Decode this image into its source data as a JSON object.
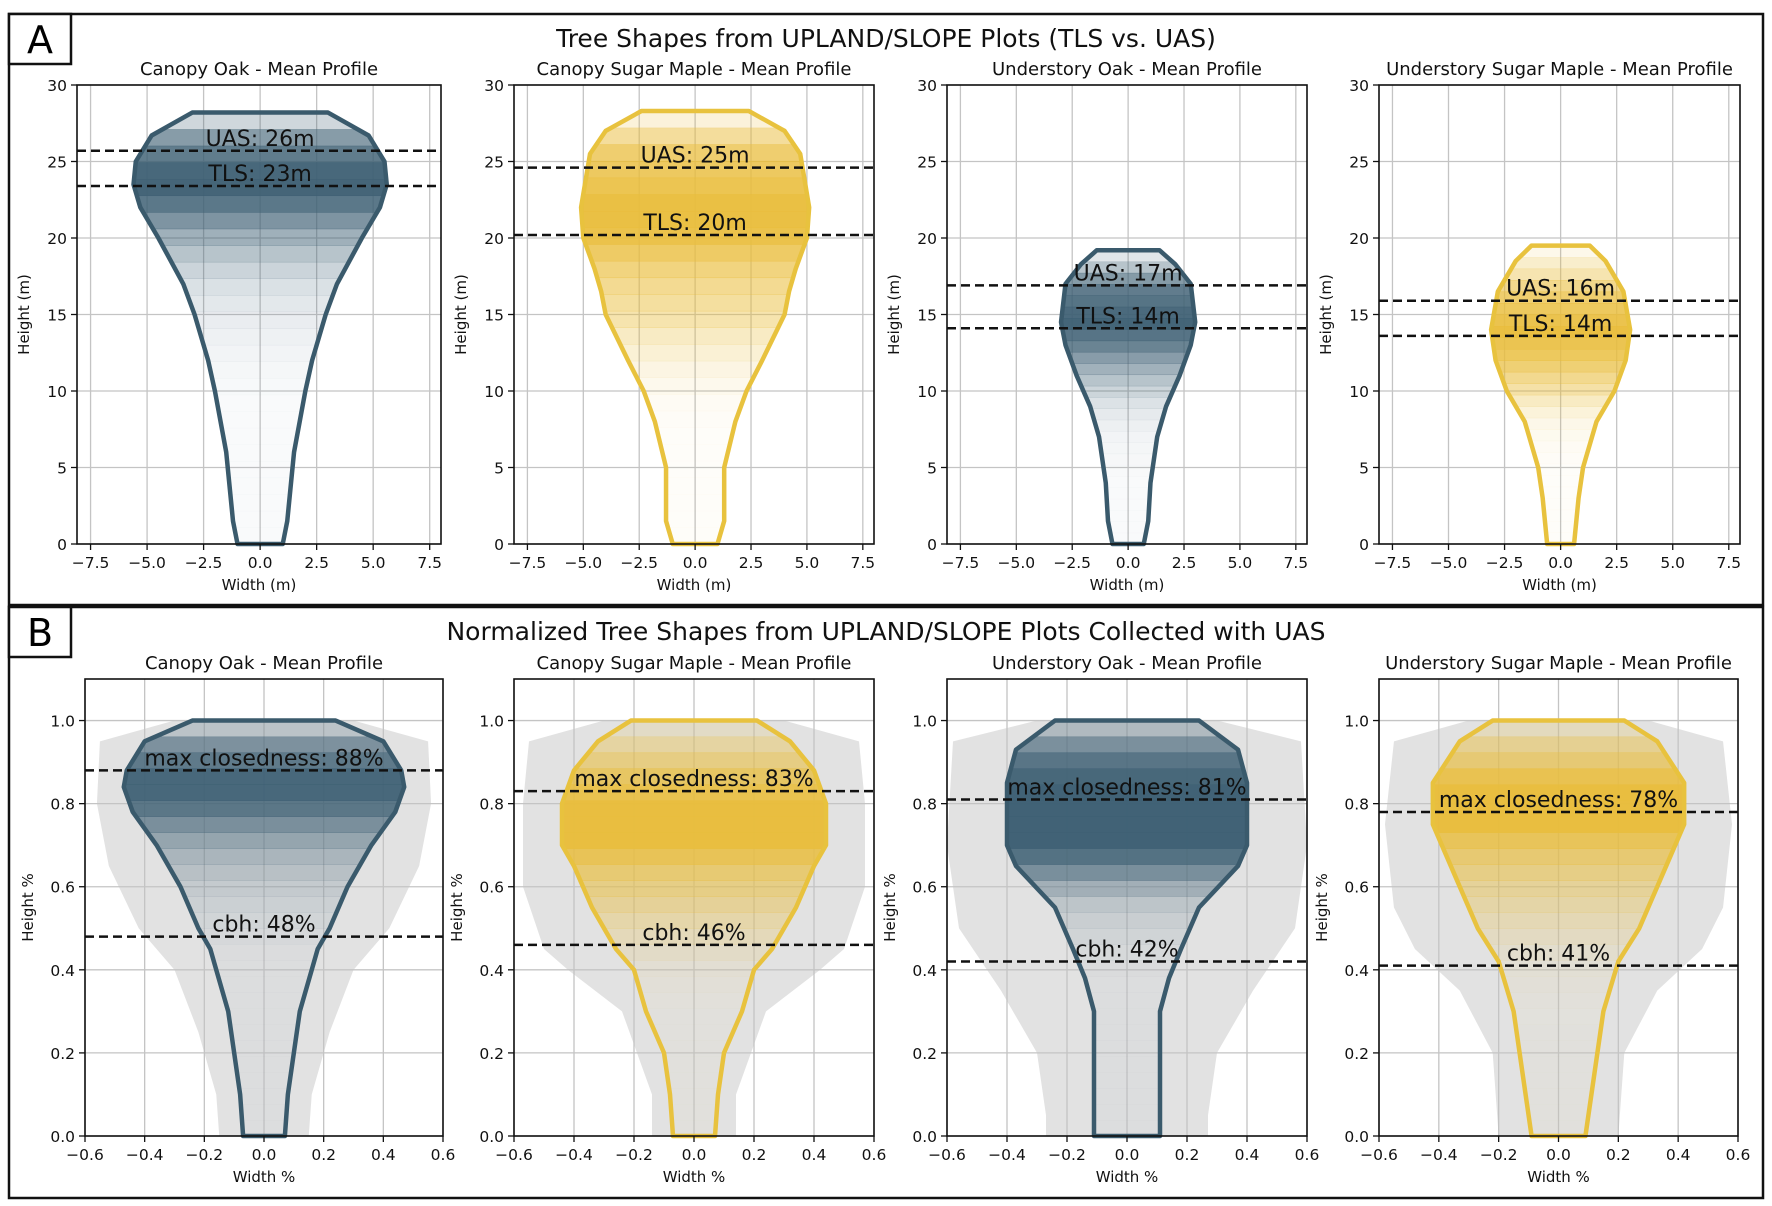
{
  "chart_data": {
    "type": "area",
    "colors": {
      "oak": "#3d5f73",
      "maple": "#e9bd3c",
      "envelope": "#e2e2e2",
      "grid": "#c4c4c4"
    },
    "groups": [
      {
        "letter": "A",
        "title": "Tree Shapes from UPLAND/SLOPE Plots (TLS vs. UAS)",
        "xlabel": "Width (m)",
        "ylabel": "Height (m)",
        "xlim": [
          -8.1,
          8.0
        ],
        "ylim": [
          0,
          30
        ],
        "xticks": [
          -7.5,
          -5.0,
          -2.5,
          0.0,
          2.5,
          5.0,
          7.5
        ],
        "xtick_labels": [
          "−7.5",
          "−5.0",
          "−2.5",
          "0.0",
          "2.5",
          "5.0",
          "7.5"
        ],
        "yticks": [
          0,
          5,
          10,
          15,
          20,
          25,
          30
        ],
        "ytick_labels": [
          "0",
          "5",
          "10",
          "15",
          "20",
          "25",
          "30"
        ],
        "panels": [
          {
            "title": "Canopy Oak - Mean Profile",
            "species": "oak",
            "profile_halfwidth": [
              [
                0,
                1.0
              ],
              [
                1.5,
                1.2
              ],
              [
                6,
                1.5
              ],
              [
                10,
                2.0
              ],
              [
                12,
                2.3
              ],
              [
                15,
                2.9
              ],
              [
                17,
                3.4
              ],
              [
                20,
                4.5
              ],
              [
                22,
                5.3
              ],
              [
                23.5,
                5.6
              ],
              [
                25,
                5.5
              ],
              [
                26.7,
                4.8
              ],
              [
                28.2,
                3.0
              ]
            ],
            "lines": [
              {
                "value": 25.7,
                "label": "UAS: 26m"
              },
              {
                "value": 23.4,
                "label": "TLS: 23m"
              }
            ]
          },
          {
            "title": "Canopy Sugar Maple - Mean Profile",
            "species": "maple",
            "profile_halfwidth": [
              [
                0,
                1.0
              ],
              [
                1.5,
                1.3
              ],
              [
                5,
                1.3
              ],
              [
                8,
                1.8
              ],
              [
                10,
                2.3
              ],
              [
                12,
                3.0
              ],
              [
                15,
                4.0
              ],
              [
                16.5,
                4.2
              ],
              [
                18,
                4.5
              ],
              [
                20,
                5.0
              ],
              [
                22,
                5.1
              ],
              [
                25.5,
                4.7
              ],
              [
                27,
                4.0
              ],
              [
                28.3,
                2.4
              ]
            ],
            "lines": [
              {
                "value": 24.6,
                "label": "UAS: 25m"
              },
              {
                "value": 20.2,
                "label": "TLS: 20m"
              }
            ]
          },
          {
            "title": "Understory Oak - Mean Profile",
            "species": "oak",
            "profile_halfwidth": [
              [
                0,
                0.7
              ],
              [
                1.5,
                0.9
              ],
              [
                4,
                1.0
              ],
              [
                7,
                1.3
              ],
              [
                9,
                1.7
              ],
              [
                11,
                2.3
              ],
              [
                13,
                2.8
              ],
              [
                14.5,
                3.0
              ],
              [
                17,
                2.8
              ],
              [
                18.3,
                2.1
              ],
              [
                19.2,
                1.4
              ]
            ],
            "lines": [
              {
                "value": 16.9,
                "label": "UAS: 17m"
              },
              {
                "value": 14.1,
                "label": "TLS: 14m"
              }
            ]
          },
          {
            "title": "Understory Sugar Maple - Mean Profile",
            "species": "maple",
            "profile_halfwidth": [
              [
                0,
                0.6
              ],
              [
                3,
                0.8
              ],
              [
                5,
                1.0
              ],
              [
                8,
                1.6
              ],
              [
                10,
                2.4
              ],
              [
                12,
                2.9
              ],
              [
                14,
                3.1
              ],
              [
                16.5,
                2.8
              ],
              [
                18.5,
                2.0
              ],
              [
                19.5,
                1.3
              ]
            ],
            "lines": [
              {
                "value": 15.9,
                "label": "UAS: 16m"
              },
              {
                "value": 13.6,
                "label": "TLS: 14m"
              }
            ]
          }
        ]
      },
      {
        "letter": "B",
        "title": "Normalized Tree Shapes from UPLAND/SLOPE Plots Collected with UAS",
        "xlabel": "Width %",
        "ylabel": "Height %",
        "xlim": [
          -0.6,
          0.6
        ],
        "ylim": [
          0,
          1.1
        ],
        "xticks": [
          -0.6,
          -0.4,
          -0.2,
          0.0,
          0.2,
          0.4,
          0.6
        ],
        "xtick_labels": [
          "−0.6",
          "−0.4",
          "−0.2",
          "0.0",
          "0.2",
          "0.4",
          "0.6"
        ],
        "yticks": [
          0.0,
          0.2,
          0.4,
          0.6,
          0.8,
          1.0
        ],
        "ytick_labels": [
          "0.0",
          "0.2",
          "0.4",
          "0.6",
          "0.8",
          "1.0"
        ],
        "panels": [
          {
            "title": "Canopy Oak - Mean Profile",
            "species": "oak",
            "envelope_halfwidth": [
              [
                0,
                0.15
              ],
              [
                0.1,
                0.16
              ],
              [
                0.25,
                0.22
              ],
              [
                0.4,
                0.3
              ],
              [
                0.5,
                0.42
              ],
              [
                0.65,
                0.52
              ],
              [
                0.8,
                0.56
              ],
              [
                0.95,
                0.55
              ],
              [
                1.0,
                0.3
              ]
            ],
            "profile_halfwidth": [
              [
                0,
                0.07
              ],
              [
                0.1,
                0.08
              ],
              [
                0.2,
                0.1
              ],
              [
                0.3,
                0.12
              ],
              [
                0.4,
                0.16
              ],
              [
                0.45,
                0.18
              ],
              [
                0.5,
                0.22
              ],
              [
                0.6,
                0.28
              ],
              [
                0.7,
                0.36
              ],
              [
                0.78,
                0.44
              ],
              [
                0.84,
                0.47
              ],
              [
                0.88,
                0.46
              ],
              [
                0.95,
                0.4
              ],
              [
                1.0,
                0.24
              ]
            ],
            "lines": [
              {
                "value": 0.88,
                "label": "max closedness: 88%"
              },
              {
                "value": 0.48,
                "label": "cbh: 48%"
              }
            ]
          },
          {
            "title": "Canopy Sugar Maple - Mean Profile",
            "species": "maple",
            "envelope_halfwidth": [
              [
                0,
                0.14
              ],
              [
                0.1,
                0.14
              ],
              [
                0.3,
                0.24
              ],
              [
                0.4,
                0.42
              ],
              [
                0.45,
                0.5
              ],
              [
                0.6,
                0.57
              ],
              [
                0.8,
                0.57
              ],
              [
                0.95,
                0.55
              ],
              [
                1.0,
                0.3
              ]
            ],
            "profile_halfwidth": [
              [
                0,
                0.07
              ],
              [
                0.1,
                0.08
              ],
              [
                0.2,
                0.1
              ],
              [
                0.3,
                0.16
              ],
              [
                0.4,
                0.2
              ],
              [
                0.45,
                0.26
              ],
              [
                0.55,
                0.34
              ],
              [
                0.65,
                0.4
              ],
              [
                0.7,
                0.44
              ],
              [
                0.8,
                0.44
              ],
              [
                0.88,
                0.4
              ],
              [
                0.95,
                0.32
              ],
              [
                1.0,
                0.21
              ]
            ],
            "lines": [
              {
                "value": 0.83,
                "label": "max closedness: 83%"
              },
              {
                "value": 0.46,
                "label": "cbh: 46%"
              }
            ]
          },
          {
            "title": "Understory Oak - Mean Profile",
            "species": "oak",
            "envelope_halfwidth": [
              [
                0,
                0.27
              ],
              [
                0.05,
                0.27
              ],
              [
                0.2,
                0.3
              ],
              [
                0.35,
                0.42
              ],
              [
                0.5,
                0.56
              ],
              [
                0.7,
                0.6
              ],
              [
                0.95,
                0.58
              ],
              [
                1.0,
                0.3
              ]
            ],
            "profile_halfwidth": [
              [
                0,
                0.11
              ],
              [
                0.3,
                0.11
              ],
              [
                0.38,
                0.14
              ],
              [
                0.45,
                0.18
              ],
              [
                0.55,
                0.24
              ],
              [
                0.65,
                0.37
              ],
              [
                0.7,
                0.4
              ],
              [
                0.85,
                0.4
              ],
              [
                0.93,
                0.37
              ],
              [
                1.0,
                0.24
              ]
            ],
            "lines": [
              {
                "value": 0.81,
                "label": "max closedness: 81%"
              },
              {
                "value": 0.42,
                "label": "cbh: 42%"
              }
            ]
          },
          {
            "title": "Understory Sugar Maple - Mean Profile",
            "species": "maple",
            "envelope_halfwidth": [
              [
                0,
                0.2
              ],
              [
                0.2,
                0.22
              ],
              [
                0.35,
                0.33
              ],
              [
                0.45,
                0.48
              ],
              [
                0.55,
                0.55
              ],
              [
                0.75,
                0.58
              ],
              [
                0.95,
                0.55
              ],
              [
                1.0,
                0.3
              ]
            ],
            "profile_halfwidth": [
              [
                0,
                0.09
              ],
              [
                0.15,
                0.12
              ],
              [
                0.3,
                0.15
              ],
              [
                0.42,
                0.2
              ],
              [
                0.5,
                0.27
              ],
              [
                0.65,
                0.36
              ],
              [
                0.75,
                0.42
              ],
              [
                0.85,
                0.42
              ],
              [
                0.95,
                0.33
              ],
              [
                1.0,
                0.22
              ]
            ],
            "lines": [
              {
                "value": 0.78,
                "label": "max closedness: 78%"
              },
              {
                "value": 0.41,
                "label": "cbh: 41%"
              }
            ]
          }
        ]
      }
    ]
  }
}
